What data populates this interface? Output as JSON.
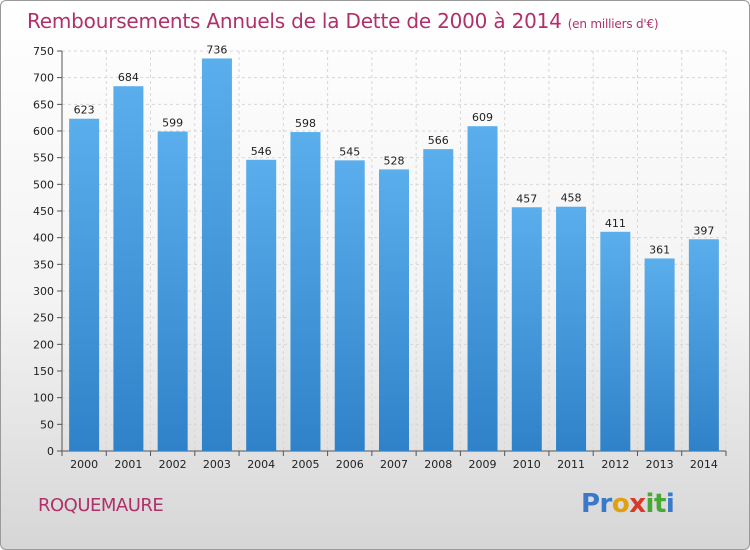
{
  "chart_data": {
    "type": "bar",
    "title": "Remboursements Annuels de la Dette de 2000 à 2014",
    "subtitle": "(en milliers d'€)",
    "categories": [
      "2000",
      "2001",
      "2002",
      "2003",
      "2004",
      "2005",
      "2006",
      "2007",
      "2008",
      "2009",
      "2010",
      "2011",
      "2012",
      "2013",
      "2014"
    ],
    "values": [
      623,
      684,
      599,
      736,
      546,
      598,
      545,
      528,
      566,
      609,
      457,
      458,
      411,
      361,
      397
    ],
    "ylim": [
      0,
      750
    ],
    "yticks": [
      0,
      50,
      100,
      150,
      200,
      250,
      300,
      350,
      400,
      450,
      500,
      550,
      600,
      650,
      700,
      750
    ],
    "grid": true,
    "bar_color": "#4a9fe0",
    "bar_color_dark": "#2d7fc4"
  },
  "footer": {
    "commune": "ROQUEMAURE",
    "logo_parts": [
      "Pr",
      "o",
      "x",
      "it",
      "i"
    ]
  }
}
